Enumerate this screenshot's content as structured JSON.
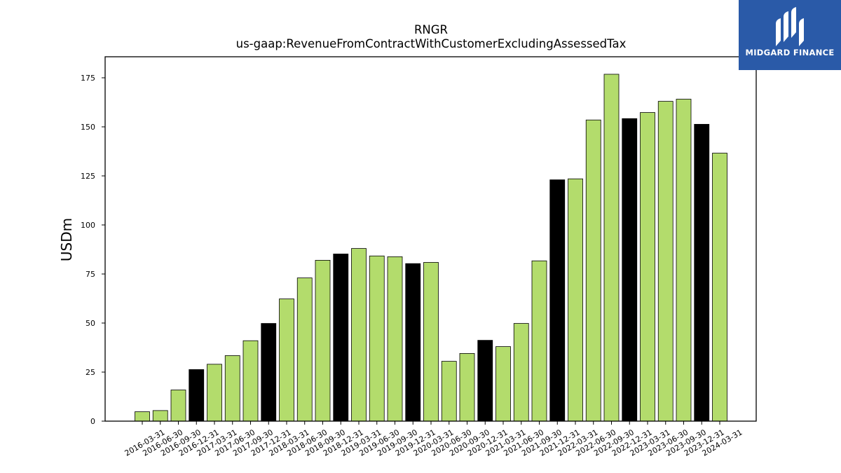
{
  "brand": {
    "name": "MIDGARD FINANCE"
  },
  "chart_data": {
    "type": "bar",
    "title": "RNGR",
    "subtitle": "us-gaap:RevenueFromContractWithCustomerExcludingAssessedTax",
    "ylabel": "USDm",
    "xlabel": "",
    "ylim": [
      0,
      185
    ],
    "yticks": [
      0,
      25,
      50,
      75,
      100,
      125,
      150,
      175
    ],
    "grid": false,
    "colors": {
      "quarter": "#b3dc6c",
      "year_end": "#000000",
      "edge": "#000000"
    },
    "categories": [
      "2016-03-31",
      "2016-06-30",
      "2016-09-30",
      "2016-12-31",
      "2017-03-31",
      "2017-06-30",
      "2017-09-30",
      "2017-12-31",
      "2018-03-31",
      "2018-06-30",
      "2018-09-30",
      "2018-12-31",
      "2019-03-31",
      "2019-06-30",
      "2019-09-30",
      "2019-12-31",
      "2020-03-31",
      "2020-06-30",
      "2020-09-30",
      "2020-12-31",
      "2021-03-31",
      "2021-06-30",
      "2021-09-30",
      "2021-12-31",
      "2022-03-31",
      "2022-06-30",
      "2022-09-30",
      "2022-12-31",
      "2023-03-31",
      "2023-06-30",
      "2023-09-30",
      "2023-12-31",
      "2024-03-31"
    ],
    "values": [
      4.8,
      5.4,
      15.9,
      26.3,
      29.0,
      33.4,
      41.0,
      49.8,
      62.3,
      73.0,
      82.0,
      85.2,
      88.0,
      84.2,
      83.8,
      80.3,
      80.9,
      30.5,
      34.5,
      41.2,
      38.0,
      49.8,
      81.7,
      123.0,
      123.5,
      153.5,
      176.8,
      154.2,
      157.3,
      163.0,
      164.1,
      151.3,
      136.6
    ]
  }
}
